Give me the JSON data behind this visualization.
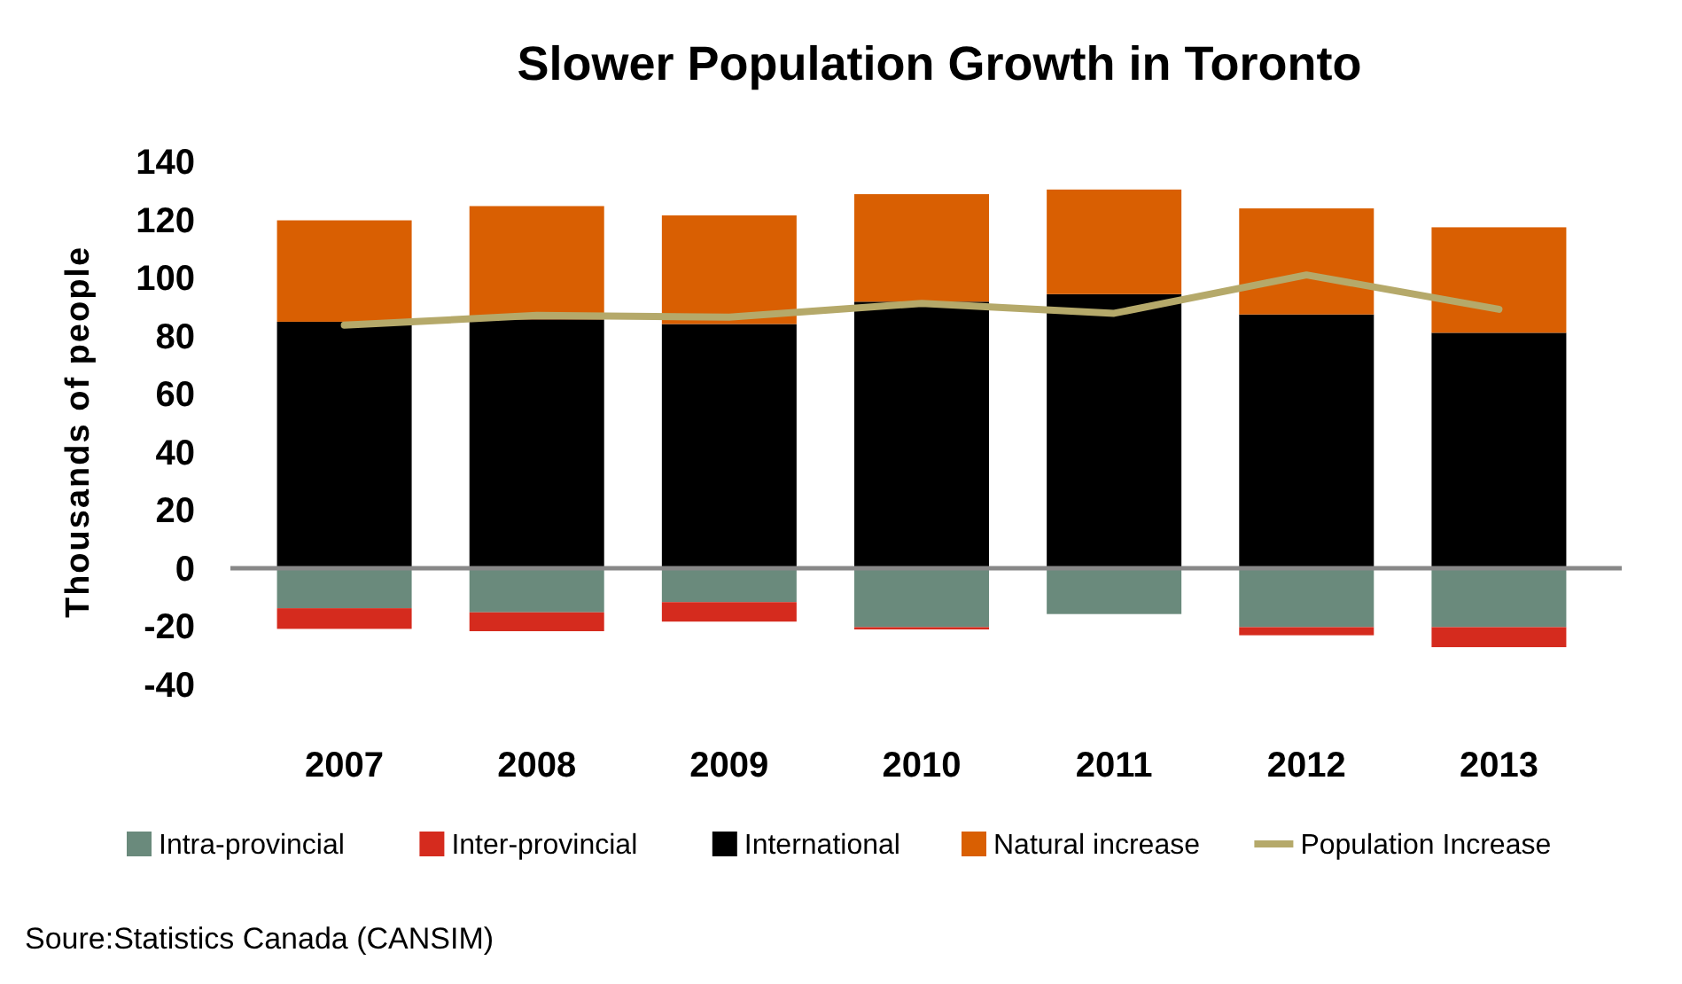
{
  "chart_data": {
    "type": "bar",
    "title": "Slower Population Growth in Toronto",
    "ylabel": "Thousands of people",
    "categories": [
      "2007",
      "2008",
      "2009",
      "2010",
      "2011",
      "2012",
      "2013"
    ],
    "stacked": true,
    "series": [
      {
        "name": "Intra-provincial",
        "color": "#6a8a7c",
        "values": [
          -13.8,
          -15.2,
          -11.7,
          -20.3,
          -15.8,
          -20.3,
          -20.3
        ]
      },
      {
        "name": "Inter-provincial",
        "color": "#d52b1e",
        "values": [
          -7.1,
          -6.5,
          -6.7,
          -0.8,
          0,
          -2.8,
          -6.9
        ]
      },
      {
        "name": "International",
        "color": "#000000",
        "values": [
          84.8,
          85.6,
          84,
          91.7,
          94.3,
          87.3,
          81
        ]
      },
      {
        "name": "Natural increase",
        "color": "#d95f02",
        "values": [
          34.9,
          39,
          37.4,
          37,
          36,
          36.5,
          36.3
        ]
      },
      {
        "name": "Population Increase",
        "type": "line",
        "color": "#b5a96a",
        "values": [
          83.6,
          87,
          86.4,
          91.1,
          87.7,
          100.9,
          89.1
        ]
      }
    ],
    "ylim": [
      -40,
      140
    ],
    "yticks": [
      -40,
      -20,
      0,
      20,
      40,
      60,
      80,
      100,
      120,
      140
    ],
    "legend": "bottom",
    "marker": "none",
    "annotations": [
      "Soure:Statistics Canada (CANSIM)"
    ]
  }
}
